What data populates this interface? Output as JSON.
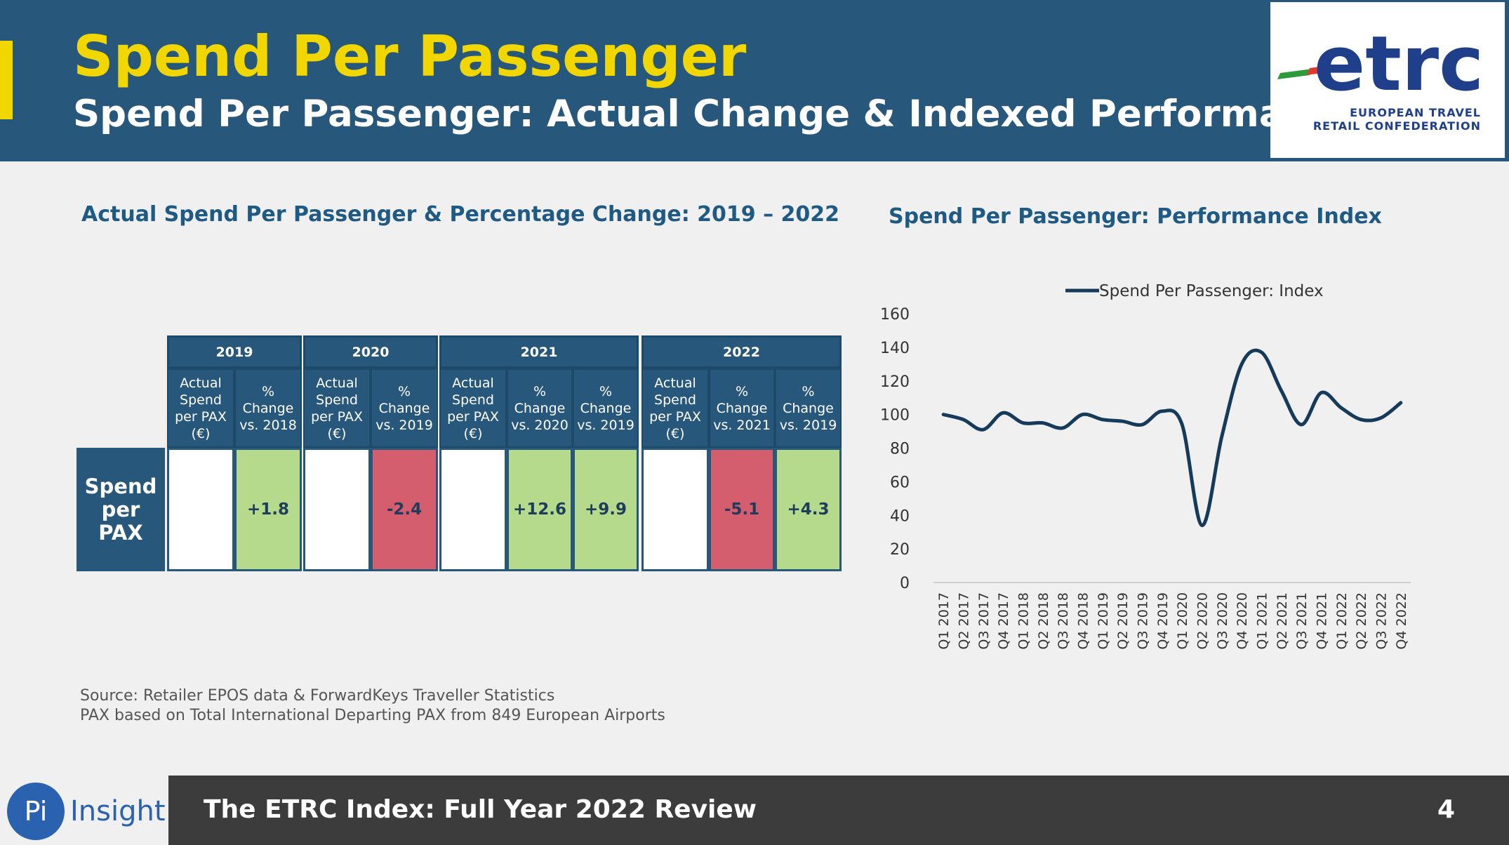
{
  "header": {
    "title": "Spend Per Passenger",
    "subtitle": "Spend Per Passenger: Actual Change & Indexed Performance",
    "logo": {
      "wordmark": "etrc",
      "line1": "EUROPEAN TRAVEL",
      "line2": "RETAIL CONFEDERATION"
    }
  },
  "table_section": {
    "title": "Actual Spend Per Passenger & Percentage Change: 2019 – 2022",
    "row_label": "Spend\nper\nPAX",
    "years": [
      "2019",
      "2020",
      "2021",
      "2022"
    ],
    "columns": [
      {
        "header": "Actual\nSpend\nper PAX\n(€)",
        "value": "",
        "color": "#ffffff"
      },
      {
        "header": "%\nChange\nvs. 2018",
        "value": "+1.8",
        "color": "#b5da8c"
      },
      {
        "header": "Actual\nSpend\nper PAX\n(€)",
        "value": "",
        "color": "#ffffff"
      },
      {
        "header": "%\nChange\nvs. 2019",
        "value": "-2.4",
        "color": "#d45d6e"
      },
      {
        "header": "Actual\nSpend\nper PAX\n(€)",
        "value": "",
        "color": "#ffffff"
      },
      {
        "header": "%\nChange\nvs. 2020",
        "value": "+12.6",
        "color": "#b5da8c"
      },
      {
        "header": "%\nChange\nvs. 2019",
        "value": "+9.9",
        "color": "#b5da8c"
      },
      {
        "header": "Actual\nSpend\nper PAX\n(€)",
        "value": "",
        "color": "#ffffff"
      },
      {
        "header": "%\nChange\nvs. 2021",
        "value": "-5.1",
        "color": "#d45d6e"
      },
      {
        "header": "%\nChange\nvs. 2019",
        "value": "+4.3",
        "color": "#b5da8c"
      }
    ]
  },
  "chart_section": {
    "title": "Spend Per Passenger: Performance Index"
  },
  "chart_data": {
    "type": "line",
    "title": "",
    "xlabel": "",
    "ylabel": "",
    "ylim": [
      0,
      160
    ],
    "yticks": [
      0,
      20,
      40,
      60,
      80,
      100,
      120,
      140,
      160
    ],
    "grid": false,
    "legend": "top",
    "categories": [
      "Q1 2017",
      "Q2 2017",
      "Q3 2017",
      "Q4 2017",
      "Q1 2018",
      "Q2 2018",
      "Q3 2018",
      "Q4 2018",
      "Q1 2019",
      "Q2 2019",
      "Q3 2019",
      "Q4 2019",
      "Q1 2020",
      "Q2 2020",
      "Q3 2020",
      "Q4 2020",
      "Q1 2021",
      "Q2 2021",
      "Q3 2021",
      "Q4 2021",
      "Q1 2022",
      "Q2 2022",
      "Q3 2022",
      "Q4 2022"
    ],
    "series": [
      {
        "name": "Spend Per Passenger: Index",
        "color": "#163a5a",
        "values": [
          100,
          97,
          91,
          101,
          95,
          95,
          92,
          100,
          97,
          96,
          94,
          102,
          94,
          34,
          87,
          130,
          137,
          114,
          94,
          113,
          104,
          97,
          98,
          107
        ]
      }
    ]
  },
  "source": {
    "line1": "Source: Retailer EPOS data & ForwardKeys Traveller Statistics",
    "line2": "PAX based on Total International Departing PAX from 849 European Airports"
  },
  "footer": {
    "brand_icon": "Pi",
    "brand_word": "Insight",
    "text": "The ETRC Index: Full Year 2022 Review",
    "page_number": "4"
  }
}
